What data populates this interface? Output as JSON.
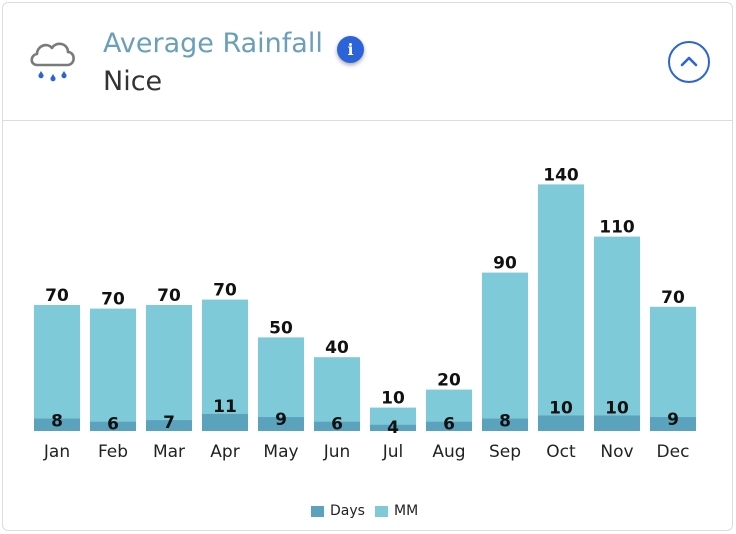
{
  "header": {
    "title": "Average Rainfall",
    "location": "Nice"
  },
  "chart_data": {
    "type": "bar",
    "categories": [
      "Jan",
      "Feb",
      "Mar",
      "Apr",
      "May",
      "Jun",
      "Jul",
      "Aug",
      "Sep",
      "Oct",
      "Nov",
      "Dec"
    ],
    "series": [
      {
        "name": "Days",
        "values": [
          8,
          6,
          7,
          11,
          9,
          6,
          4,
          6,
          8,
          10,
          10,
          9
        ],
        "color": "#5ba3bd"
      },
      {
        "name": "MM",
        "values": [
          70,
          70,
          70,
          70,
          50,
          40,
          10,
          20,
          90,
          140,
          110,
          70
        ],
        "color": "#7ecad9"
      }
    ],
    "legend": {
      "position": "bottom-center",
      "items": [
        "Days",
        "MM"
      ]
    },
    "bar_heights_estimated": [
      70,
      68,
      70,
      73,
      52,
      41,
      13,
      23,
      88,
      137,
      108,
      69
    ],
    "days_heights_estimated": [
      8,
      6,
      7,
      11,
      9,
      6,
      4,
      6,
      8,
      10,
      10,
      9
    ]
  }
}
